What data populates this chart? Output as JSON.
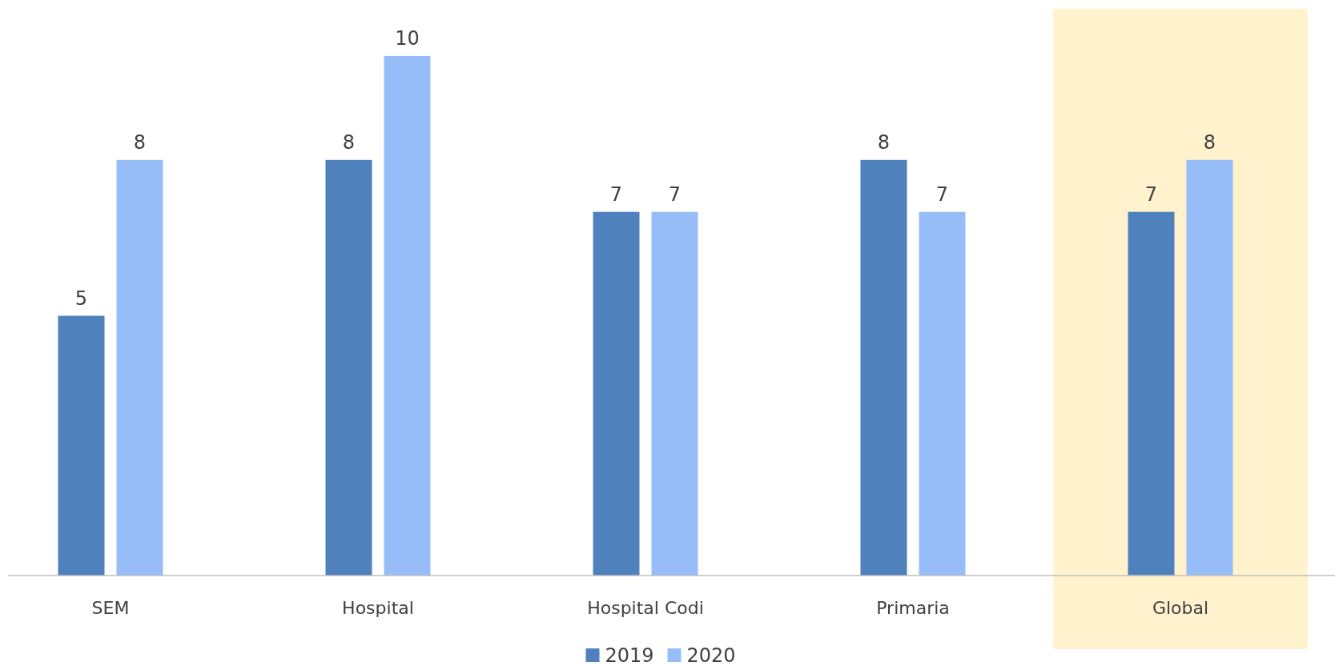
{
  "chart_data": {
    "type": "bar",
    "categories": [
      "SEM",
      "Hospital",
      "Hospital Codi",
      "Primaria",
      "Global"
    ],
    "series": [
      {
        "name": "2019",
        "color": "#4f81bd",
        "values": [
          5,
          8,
          7,
          8,
          7
        ]
      },
      {
        "name": "2020",
        "color": "#97bdf9",
        "values": [
          8,
          10,
          7,
          7,
          8
        ]
      }
    ],
    "data_labels": true,
    "legend": "bottom",
    "bands": [
      {
        "axis": "x",
        "from": "Global",
        "to": "Global",
        "color": "#fff2cc"
      }
    ]
  }
}
